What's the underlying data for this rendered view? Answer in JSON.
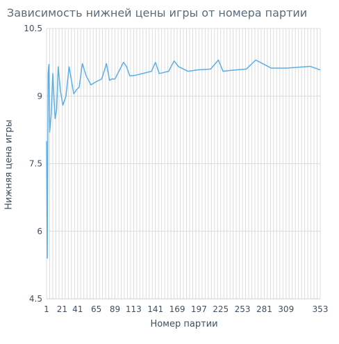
{
  "chart_data": {
    "type": "line",
    "title": "Зависимость нижней цены игры от номера партии",
    "xlabel": "Номер партии",
    "ylabel": "Нижняя цена игры",
    "xlim": [
      1,
      353
    ],
    "ylim": [
      4.5,
      10.5
    ],
    "xticks": [
      1,
      21,
      41,
      65,
      89,
      113,
      141,
      169,
      197,
      225,
      253,
      281,
      309,
      353
    ],
    "yticks": [
      4.5,
      6,
      7.5,
      9,
      10.5
    ],
    "grid": true,
    "line_color": "#5aaee8",
    "series": [
      {
        "x": [
          1,
          2,
          3,
          4,
          5,
          7,
          9,
          12,
          14,
          16,
          19,
          22,
          26,
          30,
          36,
          40,
          43,
          47,
          52,
          58,
          65,
          72,
          78,
          82,
          85,
          89,
          100,
          104,
          108,
          115,
          136,
          141,
          146,
          158,
          165,
          171,
          183,
          195,
          212,
          222,
          228,
          238,
          258,
          270,
          290,
          310,
          340,
          353
        ],
        "values": [
          8.0,
          5.4,
          9.5,
          9.7,
          8.2,
          8.6,
          9.5,
          8.5,
          8.7,
          9.65,
          9.1,
          8.8,
          9.0,
          9.65,
          9.05,
          9.15,
          9.2,
          9.72,
          9.45,
          9.25,
          9.32,
          9.38,
          9.72,
          9.35,
          9.38,
          9.38,
          9.75,
          9.65,
          9.45,
          9.46,
          9.55,
          9.75,
          9.5,
          9.55,
          9.78,
          9.65,
          9.55,
          9.58,
          9.6,
          9.8,
          9.55,
          9.57,
          9.6,
          9.8,
          9.62,
          9.62,
          9.66,
          9.58
        ]
      }
    ]
  }
}
